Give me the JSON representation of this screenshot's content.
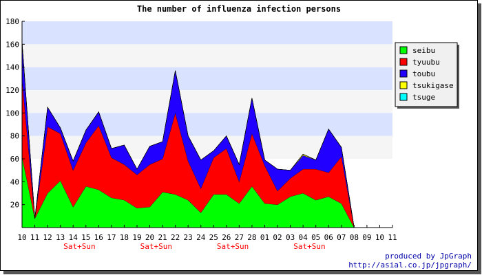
{
  "chart_data": {
    "type": "area",
    "stacked": true,
    "title": "The number of influenza infection persons",
    "xlabel": "",
    "ylabel": "",
    "ylim": [
      0,
      180
    ],
    "yticks": [
      20,
      40,
      60,
      80,
      100,
      120,
      140,
      160,
      180
    ],
    "categories": [
      "10",
      "11",
      "12",
      "13",
      "14",
      "15",
      "16",
      "17",
      "18",
      "19",
      "20",
      "21",
      "22",
      "23",
      "24",
      "25",
      "26",
      "27",
      "28",
      "01",
      "02",
      "03",
      "04",
      "05",
      "06",
      "07",
      "08",
      "09",
      "10",
      "11"
    ],
    "tick_labels": [
      "10",
      "11",
      "12",
      "13",
      "14",
      "15",
      "16",
      "17",
      "18",
      "19",
      "20",
      "21",
      "22",
      "23",
      "24",
      "25",
      "26",
      "27",
      "28",
      "01",
      "02",
      "03",
      "04",
      "05",
      "06",
      "07",
      "08",
      "09",
      "10",
      "11"
    ],
    "weekend_markers": [
      {
        "category_index": 4,
        "label": "Sat+Sun"
      },
      {
        "category_index": 10,
        "label": "Sat+Sun"
      },
      {
        "category_index": 16,
        "label": "Sat+Sun"
      },
      {
        "category_index": 22,
        "label": "Sat+Sun"
      }
    ],
    "series": [
      {
        "name": "seibu",
        "color": "#00ff00",
        "values": [
          62,
          8,
          30,
          41,
          18,
          36,
          33,
          26,
          24,
          17,
          18,
          31,
          29,
          24,
          13,
          29,
          29,
          21,
          36,
          21,
          20,
          27,
          30,
          24,
          27,
          21,
          0,
          0,
          0,
          0
        ]
      },
      {
        "name": "tyuubu",
        "color": "#ff0000",
        "values": [
          68,
          0,
          58,
          41,
          32,
          38,
          56,
          35,
          31,
          29,
          37,
          29,
          71,
          34,
          21,
          32,
          40,
          19,
          46,
          33,
          12,
          16,
          21,
          27,
          21,
          41,
          0,
          0,
          0,
          0
        ]
      },
      {
        "name": "toubu",
        "color": "#2200ff",
        "values": [
          32,
          0,
          17,
          5,
          8,
          11,
          12,
          8,
          17,
          5,
          16,
          15,
          37,
          22,
          25,
          6,
          11,
          15,
          31,
          5,
          19,
          7,
          12,
          8,
          38,
          8,
          0,
          0,
          0,
          0
        ]
      },
      {
        "name": "tsukigase",
        "color": "#ffff00",
        "values": [
          0,
          0,
          0,
          0,
          0,
          0,
          0,
          0,
          0,
          0,
          0,
          0,
          0,
          0,
          0,
          0,
          0,
          0,
          0,
          0,
          0,
          0,
          1,
          0,
          0,
          0,
          0,
          0,
          0,
          0
        ]
      },
      {
        "name": "tsuge",
        "color": "#00ffff",
        "values": [
          0,
          0,
          0,
          0,
          0,
          0,
          0,
          0,
          0,
          0,
          0,
          0,
          0,
          0,
          0,
          0,
          0,
          0,
          0,
          0,
          0,
          0,
          0,
          0,
          0,
          0,
          0,
          0,
          0,
          0
        ]
      }
    ],
    "grid": true,
    "legend_position": "right"
  },
  "credit": {
    "line1": "produced by JpGraph",
    "line2": "http://asial.co.jp/jpgraph/"
  }
}
